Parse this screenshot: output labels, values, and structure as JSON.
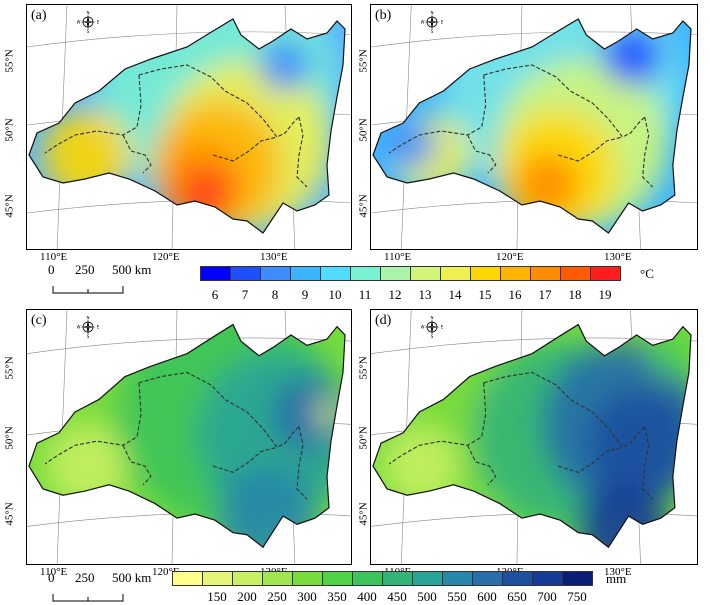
{
  "panels": [
    {
      "label": "(a)",
      "scheme": "temp_warm"
    },
    {
      "label": "(b)",
      "scheme": "temp_cool"
    },
    {
      "label": "(c)",
      "scheme": "precip_low"
    },
    {
      "label": "(d)",
      "scheme": "precip_high"
    }
  ],
  "lon_ticks": [
    "110°E",
    "120°E",
    "130°E"
  ],
  "lat_ticks": [
    "55°N",
    "50°N",
    "45°N"
  ],
  "compass_letters": {
    "n": "N",
    "s": "S",
    "e": "E",
    "w": "W"
  },
  "scale_bar": {
    "labels": [
      "0",
      "250",
      "500 km"
    ]
  },
  "temp_legend": {
    "unit": "°C",
    "labels": [
      "6",
      "7",
      "8",
      "9",
      "10",
      "11",
      "12",
      "13",
      "14",
      "15",
      "16",
      "17",
      "18",
      "19"
    ],
    "colors": [
      "#0000ff",
      "#1e50ff",
      "#3c8cff",
      "#3cb4ff",
      "#50dcff",
      "#78f0d2",
      "#aaf5aa",
      "#d2f578",
      "#f0f050",
      "#ffd700",
      "#ffb400",
      "#ff8c00",
      "#ff5a00",
      "#ff1e1e"
    ]
  },
  "precip_legend": {
    "unit": "mm",
    "labels": [
      "150",
      "200",
      "250",
      "300",
      "350",
      "400",
      "450",
      "500",
      "550",
      "600",
      "650",
      "700",
      "750"
    ],
    "colors": [
      "#ffff8c",
      "#e6f578",
      "#c8f064",
      "#a0e650",
      "#78dc3c",
      "#50d246",
      "#3cc35a",
      "#32b478",
      "#28a596",
      "#2887aa",
      "#286eaa",
      "#1e50a0",
      "#143c96",
      "#0a1e78"
    ]
  }
}
